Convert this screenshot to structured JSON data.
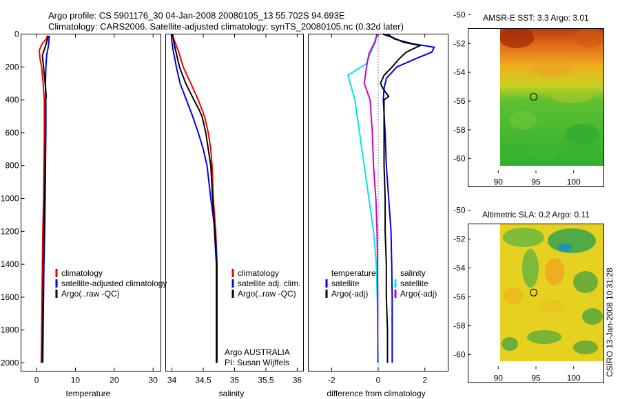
{
  "title": {
    "line1": "Argo profile: CS 5901176_30 04-Jan-2008 20080105_13 55.702S 94.693E",
    "line2": "Climatology: CARS2006. Satellite-adjusted climatology: synTS_20080105.nc (0.32d later)"
  },
  "side_text": "CSIRO 13-Jan-2008 10:31:28",
  "chart_data": [
    {
      "id": "temperature",
      "type": "line",
      "xlabel": "temperature",
      "ylabel": "",
      "xlim": [
        -4,
        32
      ],
      "ylim": [
        2050,
        0
      ],
      "xticks": [
        0,
        10,
        20,
        30
      ],
      "yticks": [
        0,
        200,
        400,
        600,
        800,
        1000,
        1200,
        1400,
        1600,
        1800,
        2000
      ],
      "legend": [
        "climatology",
        "satellite-adjusted climatology",
        "Argo(..raw -QC)"
      ],
      "legend_position": "middle-right",
      "series": [
        {
          "name": "climatology",
          "color": "#ee0000",
          "points": [
            [
              2.8,
              10
            ],
            [
              2.5,
              30
            ],
            [
              1.4,
              60
            ],
            [
              0.7,
              100
            ],
            [
              0.9,
              150
            ],
            [
              1.3,
              200
            ],
            [
              1.7,
              300
            ],
            [
              2.0,
              400
            ],
            [
              2.0,
              600
            ],
            [
              1.9,
              800
            ],
            [
              1.8,
              1000
            ],
            [
              1.6,
              1200
            ],
            [
              1.5,
              1400
            ],
            [
              1.4,
              1600
            ],
            [
              1.3,
              1800
            ],
            [
              1.2,
              2000
            ]
          ]
        },
        {
          "name": "satellite-adjusted climatology",
          "color": "#0000ee",
          "points": [
            [
              3.3,
              10
            ],
            [
              3.2,
              40
            ],
            [
              3.0,
              80
            ],
            [
              2.6,
              130
            ],
            [
              2.4,
              200
            ],
            [
              2.3,
              300
            ],
            [
              2.4,
              400
            ],
            [
              2.4,
              600
            ],
            [
              2.3,
              800
            ],
            [
              2.2,
              1000
            ],
            [
              2.1,
              1200
            ],
            [
              1.9,
              1400
            ],
            [
              1.8,
              1600
            ],
            [
              1.7,
              1800
            ],
            [
              1.6,
              2000
            ]
          ]
        },
        {
          "name": "Argo(..raw -QC)",
          "color": "#000000",
          "points": [
            [
              3.0,
              10
            ],
            [
              2.7,
              40
            ],
            [
              2.2,
              80
            ],
            [
              1.5,
              130
            ],
            [
              1.8,
              200
            ],
            [
              2.2,
              300
            ],
            [
              2.5,
              380
            ],
            [
              2.3,
              400
            ],
            [
              2.3,
              600
            ],
            [
              2.2,
              800
            ],
            [
              2.1,
              1000
            ],
            [
              1.9,
              1200
            ],
            [
              1.8,
              1400
            ],
            [
              1.7,
              1600
            ],
            [
              1.6,
              1800
            ],
            [
              1.5,
              2000
            ]
          ]
        }
      ]
    },
    {
      "id": "salinity",
      "type": "line",
      "xlabel": "salinity",
      "ylabel": "",
      "xlim": [
        33.9,
        36.1
      ],
      "ylim": [
        2050,
        0
      ],
      "xticks": [
        34,
        34.5,
        35,
        35.5,
        36
      ],
      "yticks": [],
      "legend": [
        "climatology",
        "satellite adj. clim.",
        "Argo(..raw -QC)"
      ],
      "legend_position": "middle-right",
      "annotation": [
        "Argo AUSTRALIA",
        "PI: Susan Wijffels"
      ],
      "series": [
        {
          "name": "climatology",
          "color": "#ee0000",
          "points": [
            [
              34.0,
              0
            ],
            [
              34.05,
              50
            ],
            [
              34.1,
              100
            ],
            [
              34.18,
              200
            ],
            [
              34.3,
              300
            ],
            [
              34.42,
              400
            ],
            [
              34.52,
              500
            ],
            [
              34.58,
              600
            ],
            [
              34.62,
              700
            ],
            [
              34.64,
              800
            ],
            [
              34.66,
              1000
            ],
            [
              34.7,
              1200
            ],
            [
              34.72,
              1400
            ],
            [
              34.72,
              1600
            ],
            [
              34.72,
              1800
            ],
            [
              34.72,
              2000
            ]
          ]
        },
        {
          "name": "satellite adj. clim.",
          "color": "#0000ee",
          "points": [
            [
              33.99,
              0
            ],
            [
              34.0,
              50
            ],
            [
              34.02,
              100
            ],
            [
              34.07,
              200
            ],
            [
              34.13,
              300
            ],
            [
              34.23,
              400
            ],
            [
              34.33,
              500
            ],
            [
              34.42,
              600
            ],
            [
              34.5,
              700
            ],
            [
              34.56,
              800
            ],
            [
              34.62,
              1000
            ],
            [
              34.69,
              1200
            ],
            [
              34.72,
              1400
            ],
            [
              34.72,
              1600
            ],
            [
              34.72,
              1800
            ],
            [
              34.72,
              2000
            ]
          ]
        },
        {
          "name": "Argo(..raw -QC)",
          "color": "#000000",
          "points": [
            [
              34.01,
              0
            ],
            [
              34.03,
              50
            ],
            [
              34.06,
              100
            ],
            [
              34.12,
              200
            ],
            [
              34.22,
              300
            ],
            [
              34.35,
              400
            ],
            [
              34.42,
              450
            ],
            [
              34.48,
              500
            ],
            [
              34.54,
              600
            ],
            [
              34.58,
              700
            ],
            [
              34.62,
              800
            ],
            [
              34.65,
              1000
            ],
            [
              34.68,
              1200
            ],
            [
              34.71,
              1400
            ],
            [
              34.71,
              1600
            ],
            [
              34.71,
              1800
            ],
            [
              34.71,
              2000
            ]
          ]
        }
      ]
    },
    {
      "id": "difference",
      "type": "line",
      "xlabel": "difference from climatology",
      "ylabel": "",
      "xlim": [
        -3.0,
        3.0
      ],
      "ylim": [
        2050,
        0
      ],
      "xticks": [
        -2,
        0,
        2
      ],
      "yticks": [],
      "legend_title": [
        "temperature",
        "salinity"
      ],
      "legend": [
        [
          "satellite",
          "Argo(-adj)"
        ],
        [
          "satellite",
          "Argo(-adj)"
        ]
      ],
      "legend_position": "middle",
      "series": [
        {
          "name": "temperature satellite",
          "color": "#0000ee",
          "points": [
            [
              0.4,
              0
            ],
            [
              0.7,
              30
            ],
            [
              1.5,
              60
            ],
            [
              2.4,
              80
            ],
            [
              2.3,
              110
            ],
            [
              1.6,
              150
            ],
            [
              0.8,
              200
            ],
            [
              0.35,
              270
            ],
            [
              0.25,
              330
            ],
            [
              0.22,
              400
            ],
            [
              0.3,
              600
            ],
            [
              0.35,
              800
            ],
            [
              0.45,
              1000
            ],
            [
              0.55,
              1200
            ],
            [
              0.58,
              1400
            ],
            [
              0.6,
              1600
            ],
            [
              0.6,
              1800
            ],
            [
              0.6,
              2000
            ]
          ]
        },
        {
          "name": "temperature Argo(-adj)",
          "color": "#000000",
          "points": [
            [
              0.2,
              0
            ],
            [
              0.6,
              20
            ],
            [
              1.1,
              50
            ],
            [
              1.8,
              70
            ],
            [
              1.2,
              110
            ],
            [
              0.9,
              150
            ],
            [
              0.6,
              200
            ],
            [
              0.25,
              250
            ],
            [
              0.1,
              300
            ],
            [
              0.2,
              330
            ],
            [
              0.45,
              380
            ],
            [
              0.25,
              400
            ],
            [
              0.25,
              600
            ],
            [
              0.25,
              800
            ],
            [
              0.3,
              1000
            ],
            [
              0.3,
              1200
            ],
            [
              0.35,
              1400
            ],
            [
              0.35,
              1600
            ],
            [
              0.4,
              1800
            ],
            [
              0.4,
              2000
            ]
          ]
        },
        {
          "name": "salinity satellite",
          "color": "#00e6e6",
          "points": [
            [
              -0.05,
              0
            ],
            [
              -0.12,
              50
            ],
            [
              -0.35,
              120
            ],
            [
              -0.5,
              180
            ],
            [
              -1.3,
              250
            ],
            [
              -1.0,
              400
            ],
            [
              -0.7,
              700
            ],
            [
              -0.4,
              1000
            ],
            [
              -0.2,
              1200
            ],
            [
              -0.08,
              1400
            ],
            [
              -0.04,
              1600
            ],
            [
              -0.02,
              1800
            ],
            [
              0.0,
              2000
            ]
          ]
        },
        {
          "name": "salinity Argo(-adj)",
          "color": "#cc00cc",
          "points": [
            [
              -0.05,
              0
            ],
            [
              -0.15,
              50
            ],
            [
              -0.4,
              120
            ],
            [
              -0.5,
              200
            ],
            [
              -0.6,
              300
            ],
            [
              -0.35,
              400
            ],
            [
              -0.25,
              600
            ],
            [
              -0.2,
              800
            ],
            [
              -0.1,
              1000
            ],
            [
              -0.05,
              1200
            ],
            [
              -0.03,
              1400
            ],
            [
              -0.02,
              1600
            ],
            [
              -0.02,
              1800
            ],
            [
              -0.02,
              2000
            ]
          ]
        }
      ]
    },
    {
      "id": "sst_map",
      "type": "heatmap",
      "title": "AMSR-E SST: 3.3  Argo: 3.01",
      "xlim": [
        86,
        104
      ],
      "ylim": [
        -61,
        -50
      ],
      "data_extent": {
        "x": [
          90,
          104
        ],
        "y": [
          -60,
          -50
        ]
      },
      "xticks": [
        90,
        95,
        100
      ],
      "yticks": [
        -50,
        -52,
        -54,
        -56,
        -58,
        -60
      ],
      "marker": {
        "lon": 94.693,
        "lat": -55.702
      }
    },
    {
      "id": "sla_map",
      "type": "heatmap",
      "title": "Altimetric SLA: 0.2  Argo: 0.11",
      "xlim": [
        86,
        104
      ],
      "ylim": [
        -61,
        -50
      ],
      "data_extent": {
        "x": [
          90,
          104
        ],
        "y": [
          -60,
          -50
        ]
      },
      "xticks": [
        90,
        95,
        100
      ],
      "yticks": [
        -50,
        -52,
        -54,
        -56,
        -58,
        -60
      ],
      "marker": {
        "lon": 94.693,
        "lat": -55.702
      }
    }
  ]
}
